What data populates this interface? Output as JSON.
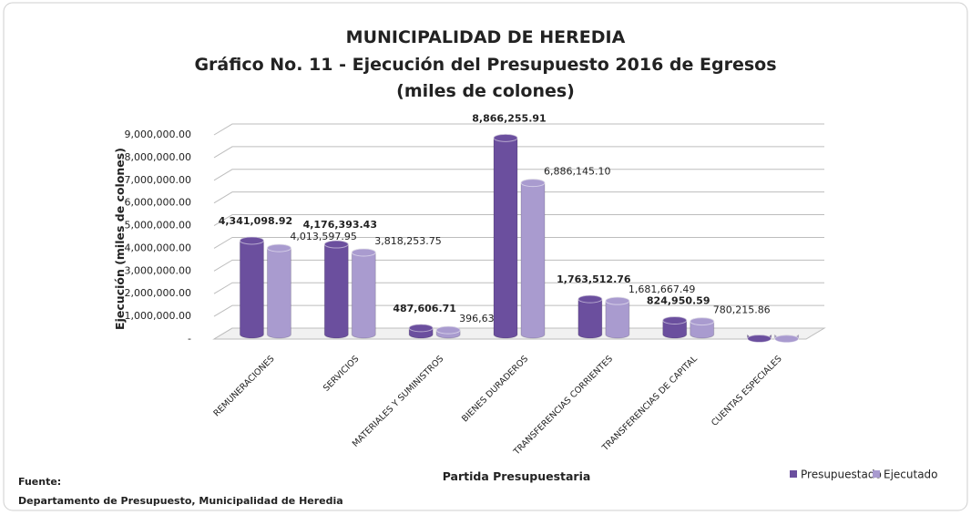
{
  "chart_data": {
    "type": "bar",
    "title": "MUNICIPALIDAD DE HEREDIA",
    "subtitle": "Gráfico No. 11 - Ejecución del Presupuesto 2016 de Egresos",
    "subtitle2": "(miles de colones)",
    "y_label": "Ejecución (miles de colones)",
    "x_label": "Partida Presupuestaria",
    "source_label": "Fuente:",
    "source": "Departamento de Presupuesto, Municipalidad de Heredia",
    "categories": [
      "REMUNERACIONES",
      "SERVICIOS",
      "MATERIALES Y SUMINISTROS",
      "BIENES DURADEROS",
      "TRANSFERENCIAS CORRIENTES",
      "TRANSFERENCIAS DE CAPITAL",
      "CUENTAS ESPECIALES"
    ],
    "series": [
      {
        "name": "Presupuestado",
        "color": "#6b4f9e",
        "values": [
          4341098.92,
          4176393.43,
          487606.71,
          8866255.91,
          1763512.76,
          824950.59,
          20000
        ],
        "value_labels": [
          "4,341,098.92",
          "4,176,393.43",
          "487,606.71",
          "8,866,255.91",
          "1,763,512.76",
          "824,950.59",
          null
        ]
      },
      {
        "name": "Ejecutado",
        "color": "#a99bcf",
        "values": [
          4013597.95,
          3818253.75,
          396637.07,
          6886145.1,
          1681667.49,
          780215.86,
          10000
        ],
        "value_labels": [
          "4,013,597.95",
          "3,818,253.75",
          "396,637.07",
          "6,886,145.10",
          "1,681,667.49",
          "780,215.86",
          null
        ]
      }
    ],
    "ylim": [
      0,
      9000000
    ],
    "yticks": [
      {
        "value": 0,
        "label": "-"
      },
      {
        "value": 1000000,
        "label": "1,000,000.00"
      },
      {
        "value": 2000000,
        "label": "2,000,000.00"
      },
      {
        "value": 3000000,
        "label": "3,000,000.00"
      },
      {
        "value": 4000000,
        "label": "4,000,000.00"
      },
      {
        "value": 5000000,
        "label": "5,000,000.00"
      },
      {
        "value": 6000000,
        "label": "6,000,000.00"
      },
      {
        "value": 7000000,
        "label": "7,000,000.00"
      },
      {
        "value": 8000000,
        "label": "8,000,000.00"
      },
      {
        "value": 9000000,
        "label": "9,000,000.00"
      }
    ],
    "grid": true,
    "legend": "bottom-right"
  }
}
